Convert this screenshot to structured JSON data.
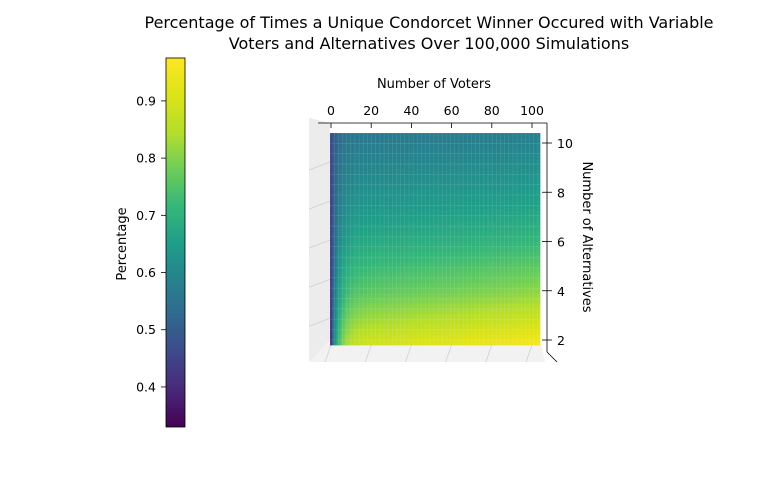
{
  "chart_data": {
    "type": "heatmap",
    "title_lines": [
      "Percentage of Times a Unique Condorcet Winner Occured with Variable",
      "Voters and Alternatives Over 100,000 Simulations"
    ],
    "xlabel": "Number of Voters",
    "ylabel": "Number of Alternatives",
    "colorbar_label": "Percentage",
    "colormap": "viridis",
    "view": "top-down 3D surface",
    "x_range": [
      1,
      101
    ],
    "y_range": [
      2,
      10
    ],
    "color_range": [
      0.33,
      0.975
    ],
    "x_ticks": [
      "0",
      "20",
      "40",
      "60",
      "80",
      "100"
    ],
    "y_ticks": [
      "2",
      "4",
      "6",
      "8",
      "10"
    ],
    "colorbar_ticks": [
      "0.4",
      "0.5",
      "0.6",
      "0.7",
      "0.8",
      "0.9"
    ],
    "approx_values": {
      "description_rows": "Number of Alternatives",
      "alternatives": [
        2,
        3,
        4,
        5,
        6,
        7,
        8,
        9,
        10
      ],
      "near_zero_voters": [
        0.34,
        0.36,
        0.38,
        0.39,
        0.4,
        0.41,
        0.42,
        0.43,
        0.44
      ],
      "at_100_voters": [
        0.96,
        0.88,
        0.81,
        0.76,
        0.71,
        0.67,
        0.64,
        0.61,
        0.58
      ]
    }
  }
}
